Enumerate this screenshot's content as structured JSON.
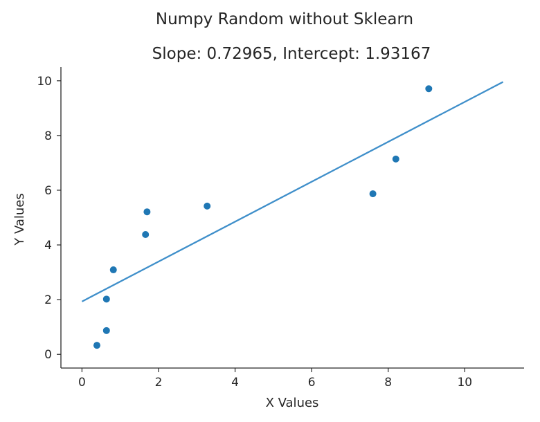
{
  "chart_data": {
    "type": "scatter",
    "title": "Numpy Random without Sklearn",
    "subtitle": "Slope: 0.72965, Intercept: 1.93167",
    "xlabel": "X Values",
    "ylabel": "Y Values",
    "xlim": [
      -0.55,
      11.55
    ],
    "ylim": [
      -0.5,
      10.5
    ],
    "xticks": [
      0,
      2,
      4,
      6,
      8,
      10
    ],
    "yticks": [
      0,
      2,
      4,
      6,
      8,
      10
    ],
    "grid": false,
    "series": [
      {
        "type": "scatter",
        "color": "#1f77b4",
        "x": [
          0.39,
          0.64,
          0.64,
          0.82,
          1.66,
          1.7,
          3.27,
          7.6,
          8.2,
          9.06
        ],
        "y": [
          0.33,
          0.87,
          2.02,
          3.09,
          4.38,
          5.21,
          5.42,
          5.87,
          7.14,
          9.71
        ]
      },
      {
        "type": "line",
        "color": "#3f8fca",
        "slope": 0.72965,
        "intercept": 1.93167,
        "x_range": [
          0,
          11
        ]
      }
    ]
  }
}
